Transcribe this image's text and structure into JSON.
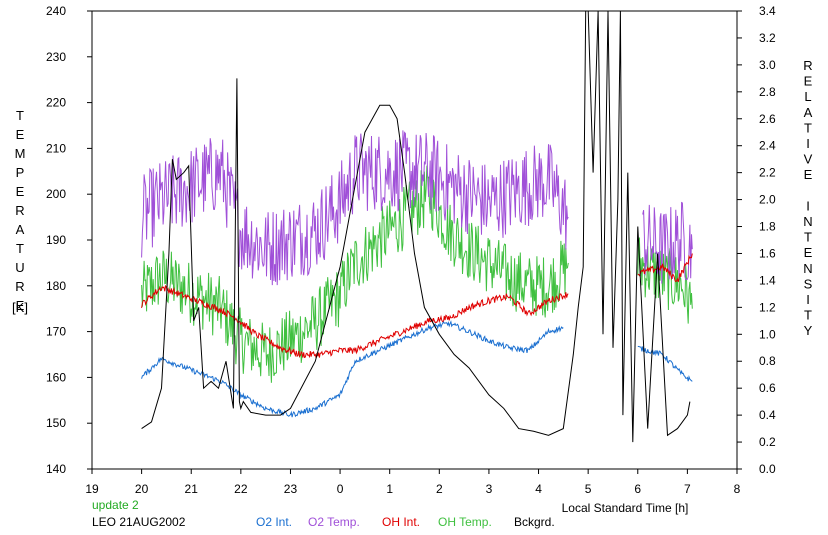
{
  "chart_data": {
    "type": "line",
    "ylabel_left_letters": [
      "T",
      "E",
      "M",
      "P",
      "E",
      "R",
      "A",
      "T",
      "U",
      "R",
      "E"
    ],
    "ylabel_left_unit": "[K]",
    "ylabel_right_letters": [
      "R",
      "E",
      "L",
      "A",
      "T",
      "I",
      "V",
      "E",
      "",
      "I",
      "N",
      "T",
      "E",
      "N",
      "S",
      "I",
      "T",
      "Y"
    ],
    "xlabel": "Local Standard Time [h]",
    "x_ticks": [
      "19",
      "20",
      "21",
      "22",
      "23",
      "0",
      "1",
      "2",
      "3",
      "4",
      "5",
      "6",
      "7",
      "8"
    ],
    "y_left_ticks": [
      140,
      150,
      160,
      170,
      180,
      190,
      200,
      210,
      220,
      230,
      240
    ],
    "y_right_ticks": [
      "0.0",
      "0.2",
      "0.4",
      "0.6",
      "0.8",
      "1.0",
      "1.2",
      "1.4",
      "1.6",
      "1.8",
      "2.0",
      "2.2",
      "2.4",
      "2.6",
      "2.8",
      "3.0",
      "3.2",
      "3.4"
    ],
    "xlim": [
      19,
      32
    ],
    "ylim_left": [
      140,
      240
    ],
    "ylim_right": [
      0,
      3.4
    ],
    "note": "update 2",
    "caption": "LEO 21AUG2002",
    "legend": [
      {
        "label": "O2 Int.",
        "color": "#1a6fd0"
      },
      {
        "label": "O2 Temp.",
        "color": "#a050d8"
      },
      {
        "label": "OH Int.",
        "color": "#e00000"
      },
      {
        "label": "OH Temp.",
        "color": "#40c040"
      },
      {
        "label": "Bckgrd.",
        "color": "#000000"
      }
    ],
    "series": [
      {
        "name": "O2 Int.",
        "axis": "right",
        "color": "#1a6fd0",
        "noise": 0.02,
        "x": [
          20.0,
          20.4,
          21.6,
          22.0,
          22.5,
          23.0,
          23.5,
          24.0,
          24.3,
          25.8,
          26.2,
          26.6,
          27.0,
          27.4,
          27.8,
          28.2,
          28.5,
          29.0,
          29.3,
          30.0,
          30.5,
          30.9,
          31.1
        ],
        "y": [
          0.68,
          0.82,
          0.65,
          0.55,
          0.45,
          0.4,
          0.45,
          0.55,
          0.8,
          1.05,
          1.08,
          1.02,
          0.95,
          0.9,
          0.88,
          1.02,
          1.05,
          null,
          null,
          0.9,
          0.85,
          0.7,
          0.65
        ]
      },
      {
        "name": "O2 Temp.",
        "axis": "left",
        "color": "#a050d8",
        "noise": 9,
        "x": [
          20.0,
          20.3,
          21.6,
          22.0,
          22.5,
          23.0,
          23.5,
          24.0,
          24.3,
          25.8,
          26.2,
          26.6,
          27.0,
          27.4,
          27.8,
          28.2,
          28.6,
          29.0,
          29.3,
          30.1,
          30.5,
          30.9,
          31.1
        ],
        "y": [
          195,
          198,
          205,
          192,
          188,
          190,
          192,
          198,
          205,
          205,
          202,
          200,
          198,
          200,
          202,
          203,
          195,
          null,
          null,
          190,
          188,
          190,
          188
        ]
      },
      {
        "name": "OH Int.",
        "axis": "right",
        "color": "#e00000",
        "noise": 0.025,
        "x": [
          20.0,
          20.4,
          21.6,
          21.9,
          22.3,
          22.8,
          23.2,
          23.6,
          24.0,
          24.3,
          25.8,
          26.2,
          26.6,
          27.0,
          27.4,
          27.8,
          28.2,
          28.6,
          29.0,
          29.3,
          30.0,
          30.5,
          30.8,
          31.1
        ],
        "y": [
          1.22,
          1.35,
          1.18,
          1.12,
          1.0,
          0.9,
          0.85,
          0.85,
          0.88,
          0.88,
          1.1,
          1.12,
          1.2,
          1.25,
          1.28,
          1.15,
          1.25,
          1.3,
          null,
          null,
          1.45,
          1.5,
          1.4,
          1.6
        ]
      },
      {
        "name": "OH Temp.",
        "axis": "left",
        "color": "#40c040",
        "noise": 7,
        "x": [
          20.0,
          20.4,
          21.6,
          22.0,
          22.5,
          23.0,
          23.5,
          24.0,
          24.3,
          25.8,
          26.2,
          26.6,
          27.0,
          27.4,
          27.8,
          28.2,
          28.6,
          29.0,
          29.3,
          30.0,
          30.5,
          30.9,
          31.1
        ],
        "y": [
          178,
          182,
          175,
          168,
          165,
          168,
          172,
          178,
          185,
          200,
          192,
          188,
          185,
          182,
          180,
          180,
          185,
          null,
          null,
          185,
          182,
          180,
          175
        ]
      },
      {
        "name": "Bckgrd.",
        "axis": "right",
        "color": "#000000",
        "noise": 0,
        "x": [
          20.0,
          20.2,
          20.4,
          20.55,
          20.62,
          20.7,
          20.85,
          20.95,
          21.05,
          21.15,
          21.25,
          21.4,
          21.55,
          21.7,
          21.85,
          21.92,
          21.97,
          22.0,
          22.05,
          22.2,
          22.5,
          22.8,
          23.0,
          23.5,
          24.0,
          24.5,
          24.8,
          25.0,
          25.15,
          25.3,
          25.5,
          25.7,
          26.0,
          26.3,
          26.6,
          27.0,
          27.3,
          27.6,
          27.9,
          28.2,
          28.5,
          28.7,
          28.8,
          28.9,
          28.95,
          29.0,
          29.1,
          29.2,
          29.3,
          29.4,
          29.5,
          29.6,
          29.65,
          29.7,
          29.8,
          29.9,
          30.0,
          30.2,
          30.4,
          30.6,
          30.8,
          30.9,
          31.0,
          31.05
        ],
        "y": [
          0.3,
          0.35,
          0.6,
          1.6,
          2.3,
          2.15,
          2.2,
          2.25,
          1.1,
          1.2,
          0.6,
          0.65,
          0.6,
          0.8,
          0.45,
          2.9,
          0.5,
          0.45,
          0.5,
          0.42,
          0.4,
          0.4,
          0.45,
          0.8,
          1.5,
          2.5,
          2.7,
          2.7,
          2.6,
          2.2,
          1.6,
          1.2,
          1.0,
          0.85,
          0.75,
          0.55,
          0.45,
          0.3,
          0.28,
          0.25,
          0.3,
          0.85,
          1.2,
          1.5,
          3.4,
          3.4,
          2.2,
          3.4,
          1.0,
          3.4,
          0.9,
          2.0,
          3.4,
          0.4,
          2.2,
          0.2,
          1.8,
          0.3,
          1.6,
          0.25,
          0.3,
          0.35,
          0.4,
          0.5
        ]
      }
    ]
  }
}
